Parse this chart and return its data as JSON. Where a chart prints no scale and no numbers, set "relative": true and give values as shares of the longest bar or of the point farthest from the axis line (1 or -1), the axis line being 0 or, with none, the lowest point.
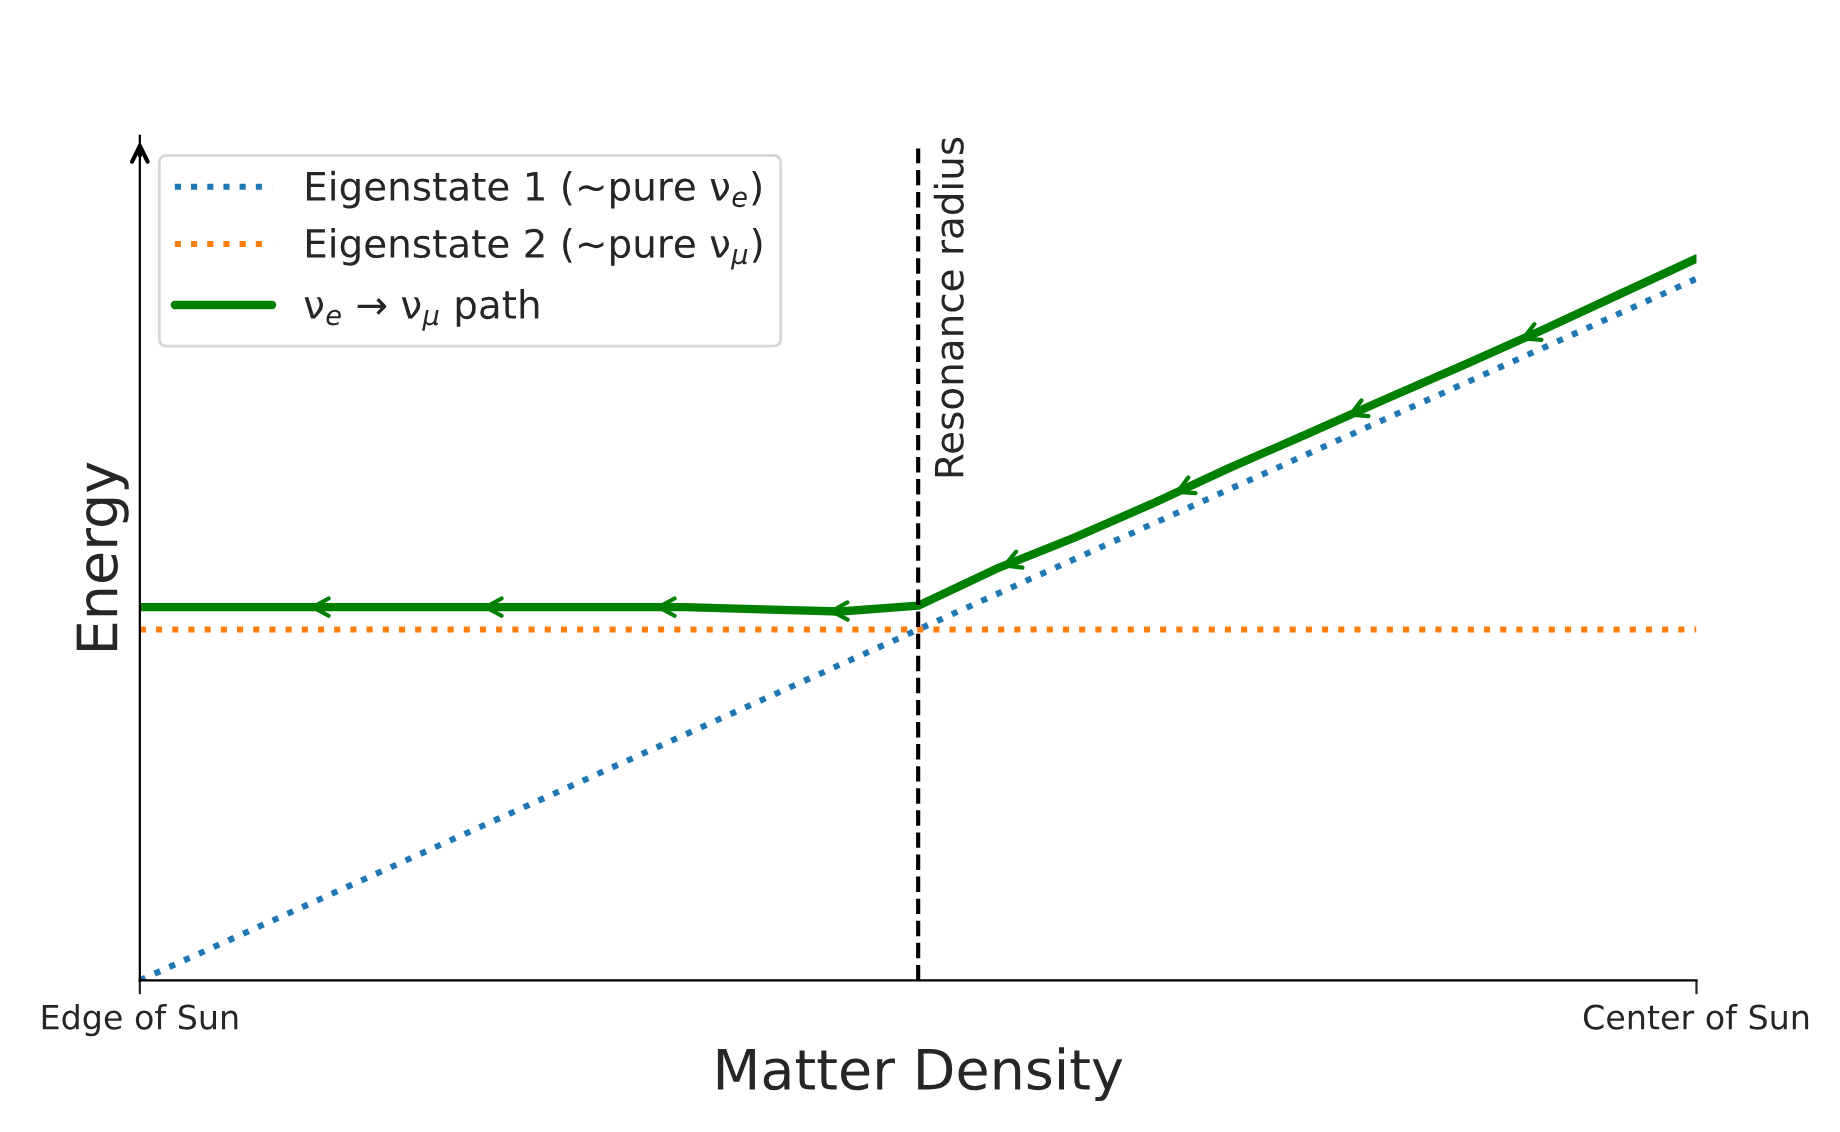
{
  "chart_data": {
    "type": "line",
    "relative": true,
    "xlabel": "Matter Density",
    "ylabel": "Energy",
    "categories": [
      "Edge of Sun",
      null,
      null,
      null,
      null,
      null,
      null,
      null,
      null,
      null,
      null,
      null,
      null,
      null,
      null,
      null,
      null,
      null,
      null,
      null,
      "Center of Sun"
    ],
    "tick_labels": "x",
    "legend": "top left",
    "series": [
      {
        "name": "Eigenstate 1 (~pure ν$_{e}$)",
        "color": "#1f77b4",
        "line_style": "dotted",
        "values": [
          0,
          0.0486,
          0.0972,
          0.1458,
          0.1944,
          0.243,
          0.2916,
          0.3402,
          0.3888,
          0.4374,
          0.486,
          0.5346,
          0.5832,
          0.6318,
          0.6804,
          0.729,
          0.7776,
          0.8262,
          0.8748,
          0.9234,
          0.972
        ]
      },
      {
        "name": "Eigenstate 2 (~pure ν$_{μ}$)",
        "color": "#ff7f0e",
        "line_style": "dotted",
        "values": [
          0.486,
          0.486,
          0.486,
          0.486,
          0.486,
          0.486,
          0.486,
          0.486,
          0.486,
          0.486,
          0.486,
          0.486,
          0.486,
          0.486,
          0.486,
          0.486,
          0.486,
          0.486,
          0.486,
          0.486,
          0.486
        ]
      },
      {
        "name": "ν$_{e}$ → ν$_{μ}$ path",
        "color": "#008000",
        "line_style": "solid",
        "values": [
          0.517,
          0.517,
          0.517,
          0.517,
          0.517,
          0.517,
          0.517,
          0.517,
          0.514,
          0.511,
          0.519,
          0.57,
          0.613,
          0.66,
          0.71,
          0.757,
          0.805,
          0.852,
          0.9,
          0.95,
          1.0
        ]
      }
    ],
    "annotations": [
      "Resonance radius"
    ]
  }
}
